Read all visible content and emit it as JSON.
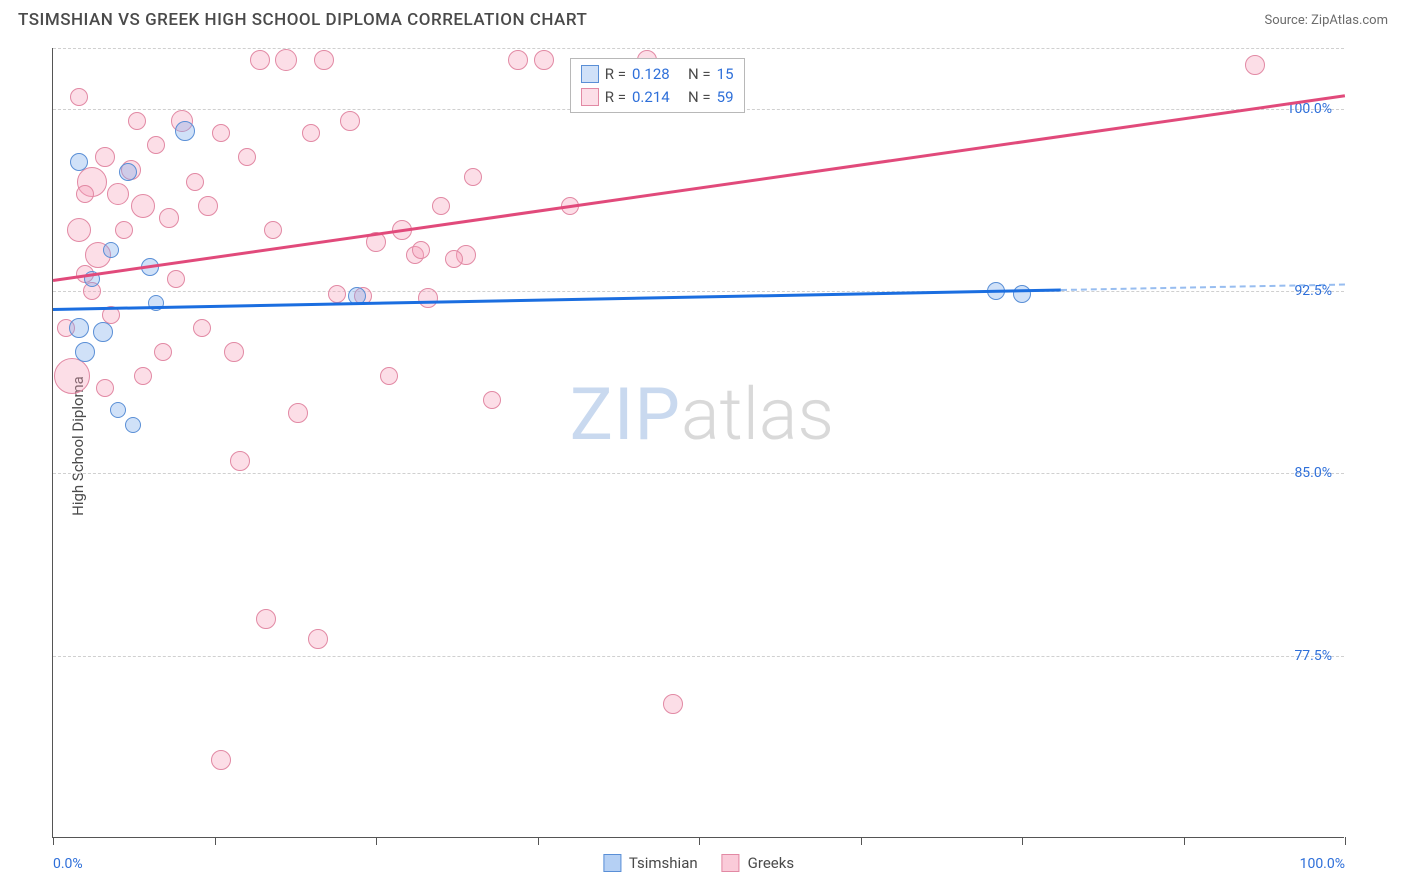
{
  "title": "TSIMSHIAN VS GREEK HIGH SCHOOL DIPLOMA CORRELATION CHART",
  "source_label": "Source: ZipAtlas.com",
  "y_axis_label": "High School Diploma",
  "chart": {
    "type": "scatter",
    "xlim": [
      0,
      100
    ],
    "ylim": [
      70,
      102.5
    ],
    "x_ticks": [
      0,
      12.5,
      25,
      37.5,
      50,
      62.5,
      75,
      87.5,
      100
    ],
    "x_tick_labels": {
      "0": "0.0%",
      "100": "100.0%"
    },
    "y_gridlines": [
      77.5,
      85,
      92.5,
      100,
      102.5
    ],
    "y_tick_labels": {
      "77.5": "77.5%",
      "85": "85.0%",
      "92.5": "92.5%",
      "100": "100.0%"
    },
    "grid_color": "#d0d0d0",
    "axis_color": "#555555",
    "label_color_blue": "#2e6fd9",
    "tick_font_size": 14,
    "series": [
      {
        "name": "Tsimshian",
        "fill": "rgba(120,170,235,0.35)",
        "stroke": "#5a8fd6",
        "trend_color": "#1b6ee0",
        "R": "0.128",
        "N": "15",
        "trend": {
          "x1": 0,
          "y1": 91.8,
          "x2": 78,
          "y2": 92.6,
          "dash_to_x": 100
        },
        "points": [
          {
            "x": 2.0,
            "y": 91.0,
            "r": 10
          },
          {
            "x": 2.5,
            "y": 90.0,
            "r": 10
          },
          {
            "x": 3.9,
            "y": 90.8,
            "r": 10
          },
          {
            "x": 5.0,
            "y": 87.6,
            "r": 8
          },
          {
            "x": 6.2,
            "y": 87.0,
            "r": 8
          },
          {
            "x": 2.0,
            "y": 97.8,
            "r": 9
          },
          {
            "x": 5.8,
            "y": 97.4,
            "r": 9
          },
          {
            "x": 10.2,
            "y": 99.1,
            "r": 10
          },
          {
            "x": 7.5,
            "y": 93.5,
            "r": 9
          },
          {
            "x": 4.5,
            "y": 94.2,
            "r": 8
          },
          {
            "x": 23.5,
            "y": 92.3,
            "r": 9
          },
          {
            "x": 73.0,
            "y": 92.5,
            "r": 9
          },
          {
            "x": 75.0,
            "y": 92.4,
            "r": 9
          },
          {
            "x": 3.0,
            "y": 93.0,
            "r": 8
          },
          {
            "x": 8.0,
            "y": 92.0,
            "r": 8
          }
        ]
      },
      {
        "name": "Greeks",
        "fill": "rgba(245,160,185,0.35)",
        "stroke": "#e289a4",
        "trend_color": "#e14a7b",
        "R": "0.214",
        "N": "59",
        "trend": {
          "x1": 0,
          "y1": 93.0,
          "x2": 100,
          "y2": 100.6
        },
        "points": [
          {
            "x": 1.5,
            "y": 89.0,
            "r": 18
          },
          {
            "x": 2.0,
            "y": 95.0,
            "r": 12
          },
          {
            "x": 2.5,
            "y": 93.2,
            "r": 9
          },
          {
            "x": 3.0,
            "y": 97.0,
            "r": 15
          },
          {
            "x": 3.5,
            "y": 94.0,
            "r": 13
          },
          {
            "x": 4.0,
            "y": 98.0,
            "r": 10
          },
          {
            "x": 5.0,
            "y": 96.5,
            "r": 11
          },
          {
            "x": 5.5,
            "y": 95.0,
            "r": 9
          },
          {
            "x": 6.0,
            "y": 97.5,
            "r": 10
          },
          {
            "x": 7.0,
            "y": 96.0,
            "r": 12
          },
          {
            "x": 8.0,
            "y": 98.5,
            "r": 9
          },
          {
            "x": 9.0,
            "y": 95.5,
            "r": 10
          },
          {
            "x": 10.0,
            "y": 99.5,
            "r": 11
          },
          {
            "x": 11.0,
            "y": 97.0,
            "r": 9
          },
          {
            "x": 12.0,
            "y": 96.0,
            "r": 10
          },
          {
            "x": 13.0,
            "y": 99.0,
            "r": 9
          },
          {
            "x": 14.0,
            "y": 90.0,
            "r": 10
          },
          {
            "x": 15.0,
            "y": 98.0,
            "r": 9
          },
          {
            "x": 16.0,
            "y": 102.0,
            "r": 10
          },
          {
            "x": 17.0,
            "y": 95.0,
            "r": 9
          },
          {
            "x": 18.0,
            "y": 102.0,
            "r": 11
          },
          {
            "x": 19.0,
            "y": 87.5,
            "r": 10
          },
          {
            "x": 20.0,
            "y": 99.0,
            "r": 9
          },
          {
            "x": 21.0,
            "y": 102.0,
            "r": 10
          },
          {
            "x": 22.0,
            "y": 92.4,
            "r": 9
          },
          {
            "x": 23.0,
            "y": 99.5,
            "r": 10
          },
          {
            "x": 24.0,
            "y": 92.3,
            "r": 9
          },
          {
            "x": 25.0,
            "y": 94.5,
            "r": 10
          },
          {
            "x": 26.0,
            "y": 89.0,
            "r": 9
          },
          {
            "x": 27.0,
            "y": 95.0,
            "r": 10
          },
          {
            "x": 28.0,
            "y": 94.0,
            "r": 9
          },
          {
            "x": 29.0,
            "y": 92.2,
            "r": 10
          },
          {
            "x": 30.0,
            "y": 96.0,
            "r": 9
          },
          {
            "x": 32.0,
            "y": 94.0,
            "r": 10
          },
          {
            "x": 34.0,
            "y": 88.0,
            "r": 9
          },
          {
            "x": 36.0,
            "y": 102.0,
            "r": 10
          },
          {
            "x": 38.0,
            "y": 102.0,
            "r": 10
          },
          {
            "x": 40.0,
            "y": 96.0,
            "r": 9
          },
          {
            "x": 46.0,
            "y": 102.0,
            "r": 10
          },
          {
            "x": 1.0,
            "y": 91.0,
            "r": 9
          },
          {
            "x": 4.5,
            "y": 91.5,
            "r": 9
          },
          {
            "x": 8.5,
            "y": 90.0,
            "r": 9
          },
          {
            "x": 3.0,
            "y": 92.5,
            "r": 9
          },
          {
            "x": 6.5,
            "y": 99.5,
            "r": 9
          },
          {
            "x": 2.0,
            "y": 100.5,
            "r": 9
          },
          {
            "x": 14.5,
            "y": 85.5,
            "r": 10
          },
          {
            "x": 16.5,
            "y": 79.0,
            "r": 10
          },
          {
            "x": 20.5,
            "y": 78.2,
            "r": 10
          },
          {
            "x": 13.0,
            "y": 73.2,
            "r": 10
          },
          {
            "x": 48.0,
            "y": 75.5,
            "r": 10
          },
          {
            "x": 93.0,
            "y": 101.8,
            "r": 10
          },
          {
            "x": 2.5,
            "y": 96.5,
            "r": 9
          },
          {
            "x": 9.5,
            "y": 93.0,
            "r": 9
          },
          {
            "x": 11.5,
            "y": 91.0,
            "r": 9
          },
          {
            "x": 7.0,
            "y": 89.0,
            "r": 9
          },
          {
            "x": 4.0,
            "y": 88.5,
            "r": 9
          },
          {
            "x": 28.5,
            "y": 94.2,
            "r": 9
          },
          {
            "x": 31.0,
            "y": 93.8,
            "r": 9
          },
          {
            "x": 32.5,
            "y": 97.2,
            "r": 9
          }
        ]
      }
    ]
  },
  "stat_legend": {
    "r_label": "R =",
    "n_label": "N =",
    "value_color": "#2e6fd9",
    "text_color": "#4a4a4a",
    "border_color": "#b8b8b8"
  },
  "bottom_legend": {
    "items": [
      {
        "label": "Tsimshian",
        "fill": "rgba(120,170,235,0.55)",
        "stroke": "#5a8fd6"
      },
      {
        "label": "Greeks",
        "fill": "rgba(245,160,185,0.55)",
        "stroke": "#e289a4"
      }
    ]
  },
  "watermark": {
    "zip": "ZIP",
    "atlas": "atlas",
    "zip_color": "#c9d9ef",
    "atlas_color": "#d9d9d9"
  }
}
